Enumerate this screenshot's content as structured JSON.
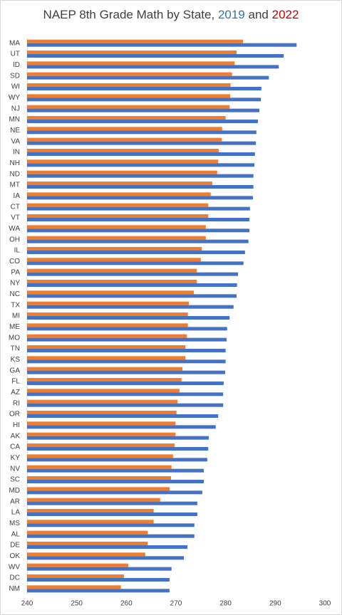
{
  "chart_data": {
    "type": "hbar",
    "title": "NAEP 8th Grade Math by State,",
    "title_joiner": "and",
    "categories": [
      "MA",
      "UT",
      "ID",
      "SD",
      "WI",
      "WY",
      "NJ",
      "MN",
      "NE",
      "VA",
      "IN",
      "NH",
      "ND",
      "MT",
      "IA",
      "CT",
      "VT",
      "WA",
      "OH",
      "IL",
      "CO",
      "PA",
      "NY",
      "NC",
      "TX",
      "MI",
      "ME",
      "MO",
      "TN",
      "KS",
      "GA",
      "FL",
      "AZ",
      "RI",
      "OR",
      "HI",
      "AK",
      "CA",
      "KY",
      "NV",
      "SC",
      "MD",
      "AR",
      "LA",
      "MS",
      "AL",
      "DE",
      "OK",
      "WV",
      "DC",
      "NM"
    ],
    "series": [
      {
        "name": "2022",
        "color": "#ed7d31",
        "values": [
          283.5,
          282.2,
          281.8,
          281.3,
          281.0,
          280.9,
          280.8,
          280.0,
          279.3,
          279.2,
          278.6,
          278.5,
          278.3,
          277.3,
          277.0,
          276.5,
          276.5,
          276.0,
          276.0,
          275.2,
          275.0,
          274.2,
          274.2,
          273.6,
          272.6,
          272.4,
          272.4,
          272.2,
          271.9,
          271.9,
          271.3,
          271.1,
          270.7,
          270.3,
          270.1,
          269.9,
          269.9,
          269.7,
          269.4,
          269.1,
          269.0,
          268.7,
          266.8,
          265.5,
          265.5,
          264.3,
          264.3,
          263.8,
          260.4,
          259.5,
          258.9
        ]
      },
      {
        "name": "2019",
        "color": "#4472c4",
        "values": [
          294.3,
          291.7,
          290.7,
          288.7,
          287.2,
          287.1,
          286.8,
          286.5,
          286.2,
          286.1,
          285.9,
          285.8,
          285.6,
          285.6,
          285.5,
          284.9,
          284.8,
          284.8,
          284.6,
          283.9,
          283.6,
          282.5,
          282.3,
          282.2,
          281.6,
          280.8,
          280.3,
          280.2,
          280.0,
          280.0,
          279.9,
          279.6,
          279.5,
          279.5,
          278.5,
          278.0,
          276.6,
          276.5,
          276.3,
          275.6,
          275.6,
          275.3,
          274.3,
          274.3,
          273.7,
          273.7,
          272.3,
          271.6,
          269.1,
          268.7,
          268.7
        ]
      }
    ],
    "xlim": [
      240,
      300
    ],
    "xticks": [
      240,
      250,
      260,
      270,
      280,
      290,
      300
    ],
    "grid": false
  }
}
